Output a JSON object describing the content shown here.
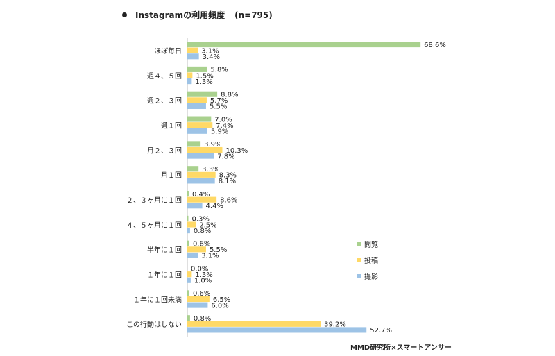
{
  "header": {
    "title": "Instagramの利用頻度",
    "n_label": "(n=795)"
  },
  "source": "MMD研究所×スマートアンサー",
  "colors": {
    "閲覧": "#a9d18e",
    "投稿": "#ffd966",
    "撮影": "#9dc3e6"
  },
  "chart_data": {
    "type": "bar",
    "orientation": "horizontal",
    "categories": [
      "ほぼ毎日",
      "週４、５回",
      "週２、３回",
      "週１回",
      "月２、３回",
      "月１回",
      "２、３ヶ月に１回",
      "４、５ヶ月に１回",
      "半年に１回",
      "１年に１回",
      "１年に１回未満",
      "この行動はしない"
    ],
    "series": [
      {
        "name": "閲覧",
        "values": [
          68.6,
          5.8,
          8.8,
          7.0,
          3.9,
          3.3,
          0.4,
          0.3,
          0.6,
          0.0,
          0.6,
          0.8
        ]
      },
      {
        "name": "投稿",
        "values": [
          3.1,
          1.5,
          5.7,
          7.4,
          10.3,
          8.3,
          8.6,
          2.5,
          5.5,
          1.3,
          6.5,
          39.2
        ]
      },
      {
        "name": "撮影",
        "values": [
          3.4,
          1.3,
          5.5,
          5.9,
          7.8,
          8.1,
          4.4,
          0.8,
          3.1,
          1.0,
          6.0,
          52.7
        ]
      }
    ],
    "value_suffix": "%",
    "legend_position": "right",
    "grid": false
  }
}
